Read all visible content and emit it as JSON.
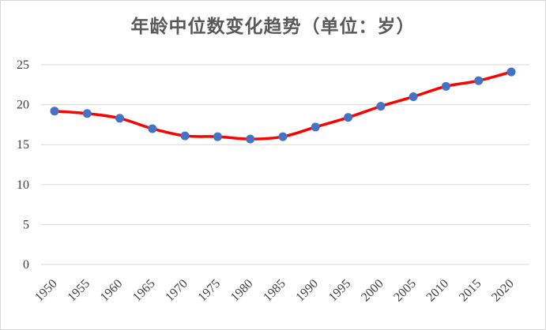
{
  "chart_data": {
    "type": "line",
    "title": "年龄中位数变化趋势（单位：岁）",
    "xlabel": "",
    "ylabel": "",
    "categories": [
      "1950",
      "1955",
      "1960",
      "1965",
      "1970",
      "1975",
      "1980",
      "1985",
      "1990",
      "1995",
      "2000",
      "2005",
      "2010",
      "2015",
      "2020"
    ],
    "series": [
      {
        "values": [
          19.2,
          18.9,
          18.3,
          17.0,
          16.1,
          16.0,
          15.7,
          16.0,
          17.2,
          18.4,
          19.8,
          21.0,
          22.3,
          23.0,
          24.1
        ]
      }
    ],
    "ylim": [
      0,
      25
    ],
    "yticks": [
      0,
      5,
      10,
      15,
      20,
      25
    ],
    "grid": true,
    "legend": "none",
    "colors": {
      "line": "#ff0000",
      "marker": "#4472c4",
      "grid": "#d9d9d9",
      "text": "#404040"
    }
  }
}
